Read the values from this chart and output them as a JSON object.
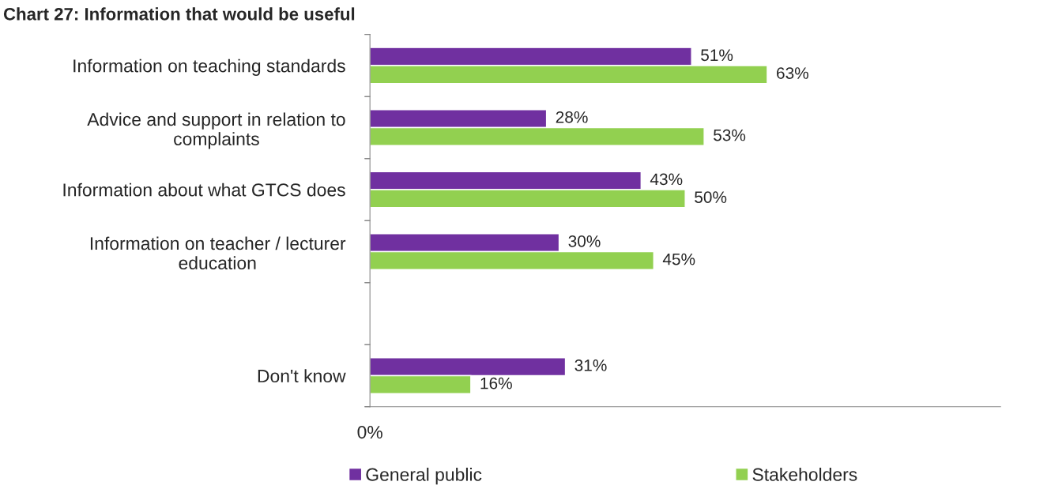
{
  "chart_data": {
    "type": "bar",
    "orientation": "horizontal",
    "title": "Chart 27: Information that would be useful",
    "categories": [
      "Information on teaching standards",
      "Advice and support in relation to\ncomplaints",
      "Information about what GTCS does",
      "Information on teacher / lecturer\neducation",
      null,
      "Don't know"
    ],
    "series": [
      {
        "name": "General public",
        "color": "#7030a0",
        "values": [
          51,
          28,
          43,
          30,
          null,
          31
        ],
        "value_labels": [
          "51%",
          "28%",
          "43%",
          "30%",
          null,
          "31%"
        ]
      },
      {
        "name": "Stakeholders",
        "color": "#92d050",
        "values": [
          63,
          53,
          50,
          45,
          null,
          16
        ],
        "value_labels": [
          "63%",
          "53%",
          "50%",
          "45%",
          null,
          "16%"
        ]
      }
    ],
    "xlim": [
      0,
      100
    ],
    "annotations": [
      "0%"
    ],
    "grid": false,
    "legend": "bottom"
  }
}
